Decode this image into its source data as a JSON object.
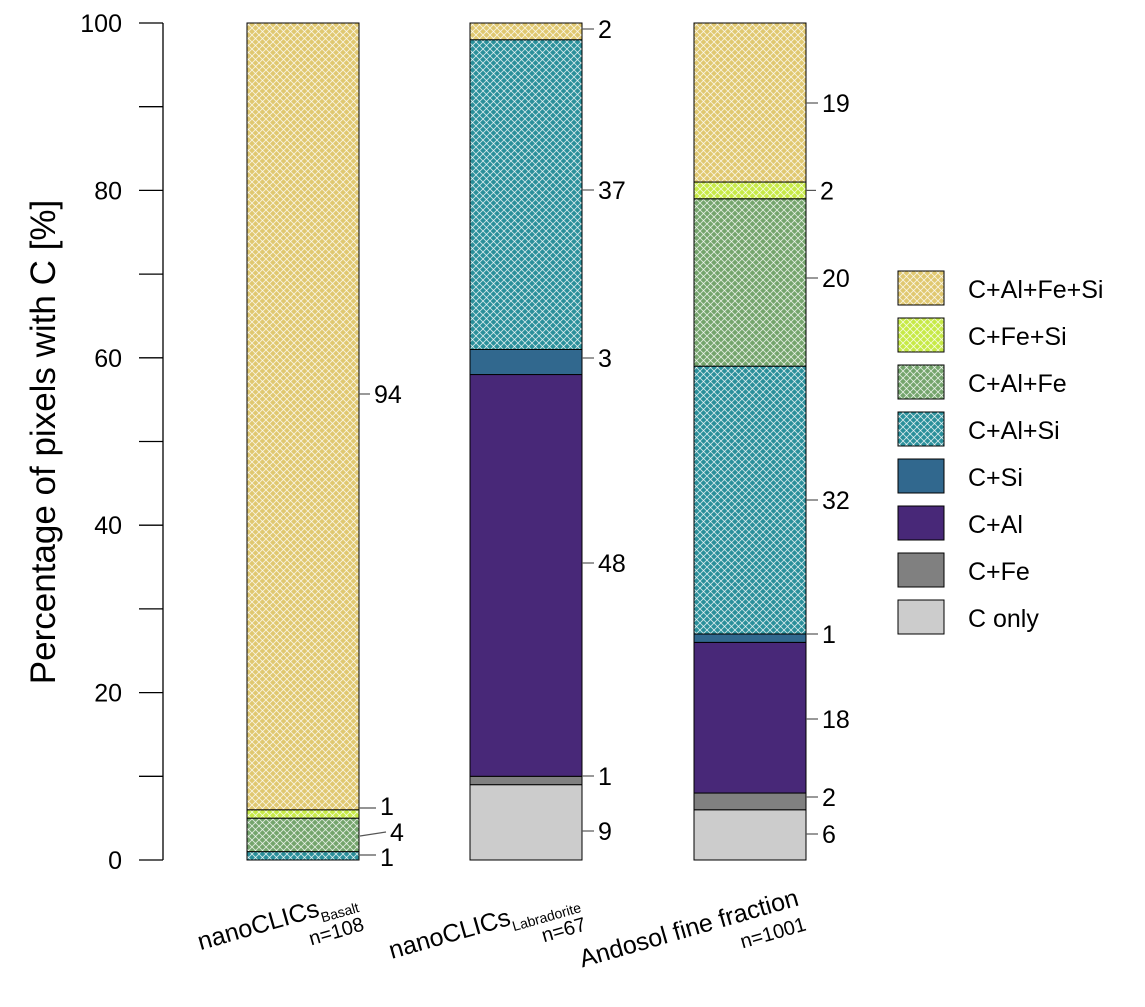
{
  "chart_data": {
    "type": "bar",
    "stacked": true,
    "ylabel": "Percentage of pixels with C [%]",
    "ylim": [
      0,
      100
    ],
    "yticks": [
      0,
      20,
      40,
      60,
      80,
      100
    ],
    "grid": false,
    "legend_position": "right",
    "categories": [
      {
        "name": "nanoCLICs",
        "subscript": "Basalt",
        "n": "n=108"
      },
      {
        "name": "nanoCLICs",
        "subscript": "Labradorite",
        "n": "n=67"
      },
      {
        "name": "Andosol fine fraction",
        "subscript": "",
        "n": "n=1001"
      }
    ],
    "series": [
      {
        "name": "C only",
        "color": "#cccccc",
        "hatch": false,
        "values": [
          0,
          9,
          6
        ]
      },
      {
        "name": "C+Fe",
        "color": "#808080",
        "hatch": false,
        "values": [
          0,
          1,
          2
        ]
      },
      {
        "name": "C+Al",
        "color": "#482878",
        "hatch": false,
        "values": [
          0,
          48,
          18
        ]
      },
      {
        "name": "C+Si",
        "color": "#31688e",
        "hatch": false,
        "values": [
          0,
          3,
          1
        ]
      },
      {
        "name": "C+Al+Si",
        "color": "#2a8f9a",
        "hatch": true,
        "values": [
          1,
          37,
          32
        ]
      },
      {
        "name": "C+Al+Fe",
        "color": "#74a46c",
        "hatch": true,
        "values": [
          4,
          0,
          20
        ]
      },
      {
        "name": "C+Fe+Si",
        "color": "#c7ea46",
        "hatch": true,
        "values": [
          1,
          0,
          2
        ]
      },
      {
        "name": "C+Al+Fe+Si",
        "color": "#e0c870",
        "hatch": true,
        "values": [
          94,
          2,
          19
        ]
      }
    ],
    "legend_order": [
      "C+Al+Fe+Si",
      "C+Fe+Si",
      "C+Al+Fe",
      "C+Al+Si",
      "C+Si",
      "C+Al",
      "C+Fe",
      "C only"
    ],
    "segment_labels": [
      [
        {
          "series": "C+Al+Fe+Si",
          "text": "94"
        },
        {
          "series": "C+Fe+Si",
          "text": "1"
        },
        {
          "series": "C+Al+Fe",
          "text": "4"
        },
        {
          "series": "C+Al+Si",
          "text": "1"
        }
      ],
      [
        {
          "series": "C+Al+Fe+Si",
          "text": "2"
        },
        {
          "series": "C+Al+Si",
          "text": "37"
        },
        {
          "series": "C+Si",
          "text": "3"
        },
        {
          "series": "C+Al",
          "text": "48"
        },
        {
          "series": "C+Fe",
          "text": "1"
        },
        {
          "series": "C only",
          "text": "9"
        }
      ],
      [
        {
          "series": "C+Al+Fe+Si",
          "text": "19"
        },
        {
          "series": "C+Fe+Si",
          "text": "2"
        },
        {
          "series": "C+Al+Fe",
          "text": "20"
        },
        {
          "series": "C+Al+Si",
          "text": "32"
        },
        {
          "series": "C+Si",
          "text": "1"
        },
        {
          "series": "C+Al",
          "text": "18"
        },
        {
          "series": "C+Fe",
          "text": "2"
        },
        {
          "series": "C only",
          "text": "6"
        }
      ]
    ]
  }
}
